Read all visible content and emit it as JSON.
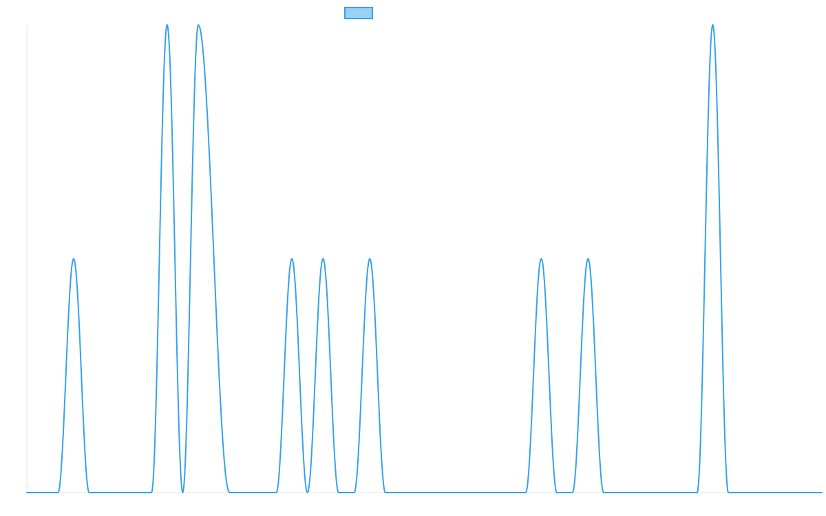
{
  "chart_data": {
    "type": "line",
    "title": "",
    "xlabel": "",
    "ylabel": "",
    "grid": false,
    "legend_placement": "top-center",
    "series": [
      {
        "line_color": "#36A2EB",
        "fill_color": "#9AD0F5",
        "points": [
          {
            "x": 0,
            "y": 0
          },
          {
            "x": 4,
            "y": 0
          },
          {
            "x": 6,
            "y": 1
          },
          {
            "x": 8,
            "y": 0
          },
          {
            "x": 16,
            "y": 0
          },
          {
            "x": 18,
            "y": 2
          },
          {
            "x": 20,
            "y": 0
          },
          {
            "x": 22,
            "y": 2
          },
          {
            "x": 26,
            "y": 0
          },
          {
            "x": 32,
            "y": 0
          },
          {
            "x": 34,
            "y": 1
          },
          {
            "x": 36,
            "y": 0
          },
          {
            "x": 38,
            "y": 1
          },
          {
            "x": 40,
            "y": 0
          },
          {
            "x": 42,
            "y": 0
          },
          {
            "x": 44,
            "y": 1
          },
          {
            "x": 46,
            "y": 0
          },
          {
            "x": 64,
            "y": 0
          },
          {
            "x": 66,
            "y": 1
          },
          {
            "x": 68,
            "y": 0
          },
          {
            "x": 70,
            "y": 0
          },
          {
            "x": 72,
            "y": 1
          },
          {
            "x": 74,
            "y": 0
          },
          {
            "x": 86,
            "y": 0
          },
          {
            "x": 88,
            "y": 2
          },
          {
            "x": 90,
            "y": 0
          },
          {
            "x": 102,
            "y": 0
          }
        ]
      }
    ],
    "xlim": [
      0,
      102
    ],
    "ylim": [
      0,
      2
    ]
  }
}
